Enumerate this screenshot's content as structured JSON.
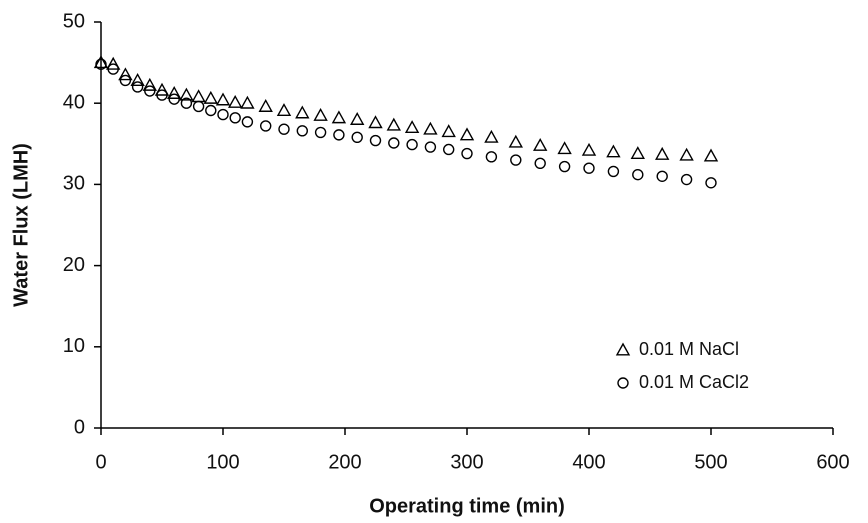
{
  "chart_data": {
    "type": "scatter",
    "x_label": "Operating time (min)",
    "y_label": "Water Flux (LMH)",
    "x": [
      0,
      10,
      20,
      30,
      40,
      50,
      60,
      70,
      80,
      90,
      100,
      110,
      120,
      135,
      150,
      165,
      180,
      195,
      210,
      225,
      240,
      255,
      270,
      285,
      300,
      320,
      340,
      360,
      380,
      400,
      420,
      440,
      460,
      480,
      500
    ],
    "series": [
      {
        "name": "0.01 M NaCl",
        "color": "#000000",
        "marker": "triangle",
        "values": [
          45,
          44.8,
          43.5,
          42.8,
          42.2,
          41.6,
          41.2,
          41,
          40.8,
          40.6,
          40.4,
          40.1,
          40,
          39.6,
          39.1,
          38.8,
          38.5,
          38.2,
          38,
          37.6,
          37.3,
          37,
          36.8,
          36.5,
          36.1,
          35.8,
          35.2,
          34.8,
          34.4,
          34.2,
          34,
          33.8,
          33.7,
          33.6,
          33.5
        ]
      },
      {
        "name": "0.01 M CaCl2",
        "color": "#000000",
        "marker": "circle",
        "values": [
          44.8,
          44.2,
          42.8,
          42,
          41.5,
          41,
          40.5,
          40,
          39.6,
          39.1,
          38.6,
          38.2,
          37.7,
          37.2,
          36.8,
          36.6,
          36.4,
          36.1,
          35.8,
          35.4,
          35.1,
          34.9,
          34.6,
          34.3,
          33.8,
          33.4,
          33,
          32.6,
          32.2,
          32,
          31.6,
          31.2,
          31,
          30.6,
          30.2
        ]
      }
    ],
    "xlim": [
      0,
      600
    ],
    "xticks": [
      0,
      100,
      200,
      300,
      400,
      500,
      600
    ],
    "ylim": [
      0,
      50
    ],
    "yticks": [
      0,
      10,
      20,
      30,
      40,
      50
    ],
    "grid": false,
    "legend": "lower right"
  }
}
